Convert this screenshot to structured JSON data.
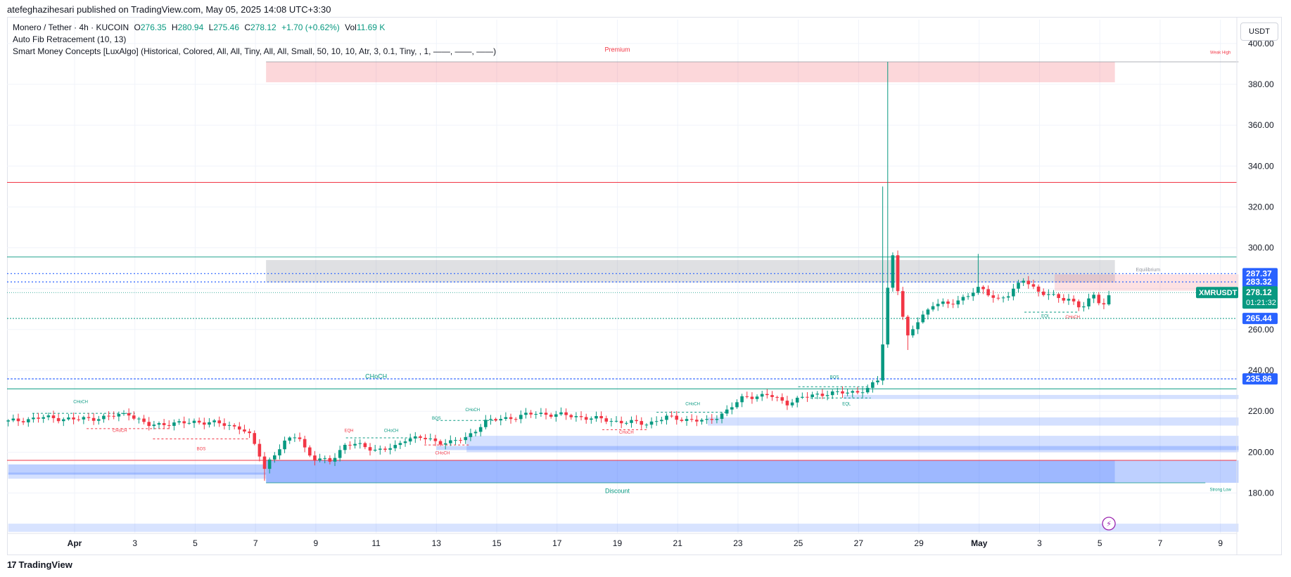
{
  "header": {
    "published_line": "atefeghazihesari published on TradingView.com, May 05, 2025 14:08 UTC+3:30"
  },
  "legend": {
    "symbol": "Monero / Tether · 4h · KUCOIN",
    "o_label": "O",
    "o_val": "276.35",
    "h_label": "H",
    "h_val": "280.94",
    "l_label": "L",
    "l_val": "275.46",
    "c_label": "C",
    "c_val": "278.12",
    "change": "+1.70 (+0.62%)",
    "vol_label": "Vol",
    "vol_val": "11.69 K",
    "indicator1": "Auto Fib Retracement (10, 13)",
    "indicator2": "Smart Money Concepts [LuxAlgo] (Historical, Colored, All, All, Tiny, All, All, Small, 50, 10, 10, Atr, 3, 0.1, Tiny, , 1, ——, ——, ——)"
  },
  "currency": "USDT",
  "footer": {
    "brand": "TradingView",
    "brand_mark": "17"
  },
  "colors": {
    "up": "#089981",
    "down": "#f23645",
    "blue_label": "#2962ff",
    "grid": "#f0f3fa"
  },
  "chart_data": {
    "type": "candlestick",
    "symbol": "XMRUSDT",
    "timeframe": "4h",
    "ylim": [
      161,
      405
    ],
    "y_ticks": [
      180,
      200,
      220,
      240,
      260,
      280,
      300,
      320,
      340,
      360,
      380,
      400
    ],
    "y_tick_labels": [
      "180.00",
      "200.00",
      "220.00",
      "240.00",
      "260.00",
      "280.00",
      "300.00",
      "320.00",
      "340.00",
      "360.00",
      "380.00",
      "400.00"
    ],
    "x_labels": [
      {
        "day": 1,
        "label": "Apr",
        "bold": true
      },
      {
        "day": 3,
        "label": "3"
      },
      {
        "day": 5,
        "label": "5"
      },
      {
        "day": 7,
        "label": "7"
      },
      {
        "day": 9,
        "label": "9"
      },
      {
        "day": 11,
        "label": "11"
      },
      {
        "day": 13,
        "label": "13"
      },
      {
        "day": 15,
        "label": "15"
      },
      {
        "day": 17,
        "label": "17"
      },
      {
        "day": 19,
        "label": "19"
      },
      {
        "day": 21,
        "label": "21"
      },
      {
        "day": 23,
        "label": "23"
      },
      {
        "day": 25,
        "label": "25"
      },
      {
        "day": 27,
        "label": "27"
      },
      {
        "day": 29,
        "label": "29"
      },
      {
        "day": 31,
        "label": "May",
        "bold": true
      },
      {
        "day": 33,
        "label": "3"
      },
      {
        "day": 35,
        "label": "5"
      },
      {
        "day": 37,
        "label": "7"
      },
      {
        "day": 39,
        "label": "9"
      }
    ],
    "price_path": [
      [
        -1.2,
        215
      ],
      [
        0.0,
        217
      ],
      [
        1.0,
        216
      ],
      [
        2.0,
        217
      ],
      [
        2.8,
        219
      ],
      [
        3.4,
        213
      ],
      [
        4.0,
        214
      ],
      [
        4.5,
        214
      ],
      [
        5.0,
        215
      ],
      [
        5.8,
        214
      ],
      [
        6.5,
        212
      ],
      [
        6.8,
        208
      ],
      [
        7.1,
        200
      ],
      [
        7.3,
        192
      ],
      [
        7.5,
        197
      ],
      [
        8.0,
        205
      ],
      [
        8.4,
        209
      ],
      [
        8.7,
        200
      ],
      [
        9.0,
        196
      ],
      [
        9.5,
        196
      ],
      [
        10.0,
        204
      ],
      [
        10.6,
        203
      ],
      [
        11.0,
        201
      ],
      [
        11.6,
        202
      ],
      [
        12.0,
        207
      ],
      [
        12.5,
        207
      ],
      [
        13.0,
        205
      ],
      [
        13.5,
        205
      ],
      [
        14.0,
        207
      ],
      [
        14.6,
        215
      ],
      [
        15.5,
        217
      ],
      [
        16.3,
        219
      ],
      [
        17.3,
        218
      ],
      [
        18.5,
        216
      ],
      [
        19.0,
        215
      ],
      [
        20.0,
        214
      ],
      [
        20.6,
        217
      ],
      [
        21.3,
        216
      ],
      [
        22.0,
        215
      ],
      [
        22.6,
        220
      ],
      [
        23.2,
        227
      ],
      [
        24.0,
        228
      ],
      [
        24.6,
        224
      ],
      [
        25.2,
        227
      ],
      [
        26.0,
        229
      ],
      [
        26.7,
        229
      ],
      [
        27.3,
        231
      ],
      [
        27.7,
        236
      ],
      [
        27.9,
        270
      ],
      [
        28.1,
        300
      ],
      [
        28.3,
        280
      ],
      [
        28.6,
        255
      ],
      [
        29.0,
        265
      ],
      [
        29.5,
        273
      ],
      [
        30.0,
        272
      ],
      [
        30.5,
        276
      ],
      [
        31.0,
        280
      ],
      [
        31.6,
        275
      ],
      [
        32.0,
        277
      ],
      [
        32.5,
        285
      ],
      [
        33.0,
        278
      ],
      [
        33.5,
        276
      ],
      [
        34.0,
        275
      ],
      [
        34.4,
        270
      ],
      [
        34.8,
        277
      ],
      [
        35.1,
        272
      ],
      [
        35.4,
        278.12
      ]
    ],
    "last_price": "278.12",
    "countdown": "01:21:32",
    "smc_labels": [
      {
        "text": "Premium",
        "day": 19.0,
        "price": 396,
        "color": "#f23645",
        "size": 9
      },
      {
        "text": "Weak High",
        "day": 39.0,
        "price": 395,
        "color": "#f23645",
        "size": 6
      },
      {
        "text": "Equilibrium",
        "day": 36.6,
        "price": 288.5,
        "color": "#9598a1",
        "size": 7
      },
      {
        "text": "Discount",
        "day": 19.0,
        "price": 180,
        "color": "#089981",
        "size": 9
      },
      {
        "text": "Strong Low",
        "day": 39.0,
        "price": 181,
        "color": "#089981",
        "size": 6
      },
      {
        "text": "CHoCH",
        "day": 11.0,
        "price": 236,
        "color": "#089981",
        "size": 9
      },
      {
        "text": "CHoCH",
        "day": 1.2,
        "price": 224,
        "color": "#089981",
        "size": 6
      },
      {
        "text": "CHoCH",
        "day": 2.5,
        "price": 210,
        "color": "#f23645",
        "size": 6
      },
      {
        "text": "BOS",
        "day": 5.2,
        "price": 201,
        "color": "#f23645",
        "size": 6
      },
      {
        "text": "EQH",
        "day": 10.1,
        "price": 210,
        "color": "#f23645",
        "size": 6
      },
      {
        "text": "CHoCH",
        "day": 11.5,
        "price": 210,
        "color": "#089981",
        "size": 6
      },
      {
        "text": "BOS",
        "day": 13.0,
        "price": 216,
        "color": "#089981",
        "size": 6
      },
      {
        "text": "CHoCH",
        "day": 14.2,
        "price": 220,
        "color": "#089981",
        "size": 6
      },
      {
        "text": "CHoCH",
        "day": 13.2,
        "price": 199,
        "color": "#f23645",
        "size": 6
      },
      {
        "text": "CHoCH",
        "day": 19.3,
        "price": 209,
        "color": "#f23645",
        "size": 6
      },
      {
        "text": "CHoCH",
        "day": 21.5,
        "price": 223,
        "color": "#089981",
        "size": 6
      },
      {
        "text": "BOS",
        "day": 26.2,
        "price": 236,
        "color": "#089981",
        "size": 6
      },
      {
        "text": "EQL",
        "day": 26.6,
        "price": 223,
        "color": "#089981",
        "size": 6
      },
      {
        "text": "EQL",
        "day": 33.2,
        "price": 266,
        "color": "#089981",
        "size": 6
      },
      {
        "text": "CHoCH",
        "day": 34.1,
        "price": 265.5,
        "color": "#f23645",
        "size": 6
      }
    ],
    "price_labels": [
      {
        "value": "287.37",
        "price": 287.37,
        "bg": "#2962ff"
      },
      {
        "value": "283.32",
        "price": 283.32,
        "bg": "#2962ff"
      },
      {
        "value": "265.44",
        "price": 265.44,
        "bg": "#2962ff"
      },
      {
        "value": "235.86",
        "price": 235.86,
        "bg": "#2962ff"
      }
    ]
  }
}
